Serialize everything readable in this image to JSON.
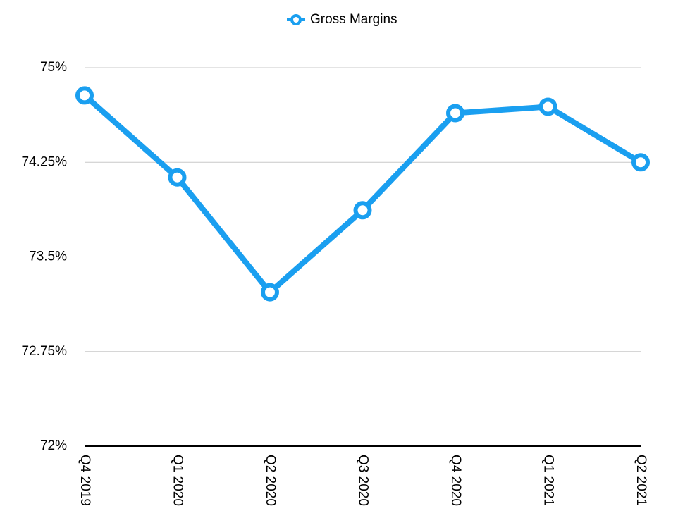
{
  "chart_data": {
    "type": "line",
    "categories": [
      "Q4 2019",
      "Q1 2020",
      "Q2 2020",
      "Q3 2020",
      "Q4 2020",
      "Q1 2021",
      "Q2 2021"
    ],
    "series": [
      {
        "name": "Gross Margins",
        "color": "#1a9ff0",
        "values": [
          74.78,
          74.13,
          73.22,
          73.87,
          74.64,
          74.69,
          74.25
        ]
      }
    ],
    "ylim": [
      72,
      75
    ],
    "yticks": [
      {
        "value": 72,
        "label": "72%"
      },
      {
        "value": 72.75,
        "label": "72.75%"
      },
      {
        "value": 73.5,
        "label": "73.5%"
      },
      {
        "value": 74.25,
        "label": "74.25%"
      },
      {
        "value": 75,
        "label": "75%"
      }
    ],
    "grid": true,
    "legend": "top"
  }
}
